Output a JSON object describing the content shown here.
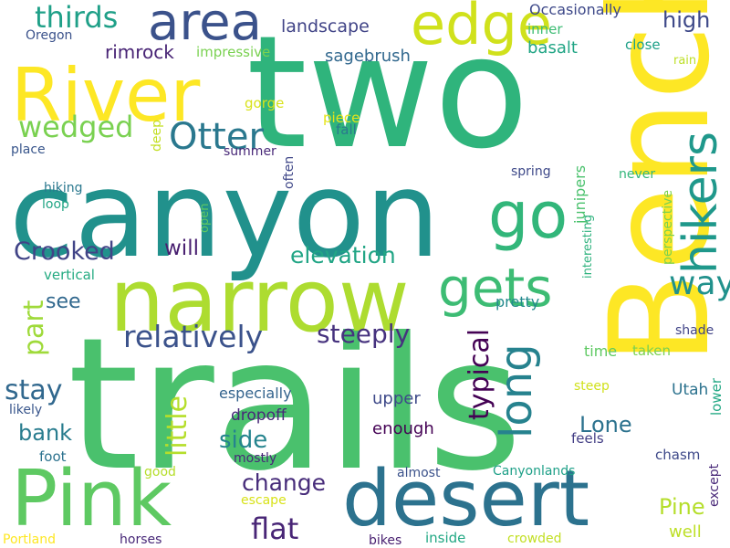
{
  "words": [
    {
      "text": "trails",
      "color": "#4ac16d"
    },
    {
      "text": "two",
      "color": "#2fb47c"
    },
    {
      "text": "canyon",
      "color": "#21918c"
    },
    {
      "text": "Bench",
      "color": "#fde725"
    },
    {
      "text": "narrow",
      "color": "#addc30"
    },
    {
      "text": "desert",
      "color": "#2c728e"
    },
    {
      "text": "Pink",
      "color": "#5ec962"
    },
    {
      "text": "River",
      "color": "#fde725"
    },
    {
      "text": "area",
      "color": "#3b528b"
    },
    {
      "text": "edge",
      "color": "#d0e11c"
    },
    {
      "text": "hikers",
      "color": "#1f988b"
    },
    {
      "text": "go",
      "color": "#32b67a"
    },
    {
      "text": "gets",
      "color": "#3dbc74"
    },
    {
      "text": "long",
      "color": "#26828e"
    },
    {
      "text": "Otter",
      "color": "#2a788e"
    },
    {
      "text": "wedged",
      "color": "#7ad151"
    },
    {
      "text": "relatively",
      "color": "#3b528b"
    },
    {
      "text": "way",
      "color": "#21918c"
    },
    {
      "text": "thirds",
      "color": "#1fa088"
    },
    {
      "text": "Crooked",
      "color": "#414487"
    },
    {
      "text": "elevation",
      "color": "#21a585"
    },
    {
      "text": "steeply",
      "color": "#46327e"
    },
    {
      "text": "typical",
      "color": "#440154"
    },
    {
      "text": "little",
      "color": "#b5de2b"
    },
    {
      "text": "stay",
      "color": "#31688e"
    },
    {
      "text": "part",
      "color": "#9fda3a"
    },
    {
      "text": "will",
      "color": "#481f70"
    },
    {
      "text": "change",
      "color": "#472c7a"
    },
    {
      "text": "flat",
      "color": "#482576"
    },
    {
      "text": "side",
      "color": "#25848e"
    },
    {
      "text": "Pine",
      "color": "#b5de2b"
    },
    {
      "text": "Lone",
      "color": "#2c728e"
    },
    {
      "text": "bank",
      "color": "#287c8e"
    },
    {
      "text": "see",
      "color": "#31688e"
    },
    {
      "text": "high",
      "color": "#3e4989"
    },
    {
      "text": "landscape",
      "color": "#414487"
    },
    {
      "text": "rimrock",
      "color": "#482475"
    },
    {
      "text": "sagebrush",
      "color": "#31688e"
    },
    {
      "text": "Occasionally",
      "color": "#3e4989"
    },
    {
      "text": "basalt",
      "color": "#21a585"
    },
    {
      "text": "upper",
      "color": "#3e4989"
    },
    {
      "text": "well",
      "color": "#bddf26"
    },
    {
      "text": "enough",
      "color": "#440154"
    },
    {
      "text": "dropoff",
      "color": "#482878"
    },
    {
      "text": "especially",
      "color": "#33638d"
    },
    {
      "text": "Utah",
      "color": "#2c728e"
    },
    {
      "text": "junipers",
      "color": "#4ac16d"
    },
    {
      "text": "pretty",
      "color": "#238a8d"
    },
    {
      "text": "vertical",
      "color": "#25ab82"
    },
    {
      "text": "impressive",
      "color": "#7ad151"
    },
    {
      "text": "Oregon",
      "color": "#3b528b"
    },
    {
      "text": "inner",
      "color": "#3dbc74"
    },
    {
      "text": "close",
      "color": "#1fa088"
    },
    {
      "text": "rain",
      "color": "#bddf26"
    },
    {
      "text": "gorge",
      "color": "#d8e219"
    },
    {
      "text": "piece",
      "color": "#e5e419"
    },
    {
      "text": "deep",
      "color": "#c2df23"
    },
    {
      "text": "fall",
      "color": "#2a788e"
    },
    {
      "text": "place",
      "color": "#39568c"
    },
    {
      "text": "summer",
      "color": "#482878"
    },
    {
      "text": "often",
      "color": "#3f4788"
    },
    {
      "text": "hiking",
      "color": "#2a788e"
    },
    {
      "text": "loop",
      "color": "#21a585"
    },
    {
      "text": "open",
      "color": "#5ec962"
    },
    {
      "text": "interesting",
      "color": "#2db27d"
    },
    {
      "text": "perspective",
      "color": "#7ad151"
    },
    {
      "text": "spring",
      "color": "#3e4989"
    },
    {
      "text": "never",
      "color": "#32b67a"
    },
    {
      "text": "shade",
      "color": "#414487"
    },
    {
      "text": "time",
      "color": "#5ec962"
    },
    {
      "text": "taken",
      "color": "#7ad151"
    },
    {
      "text": "steep",
      "color": "#d0e11c"
    },
    {
      "text": "lower",
      "color": "#22a884"
    },
    {
      "text": "likely",
      "color": "#39568c"
    },
    {
      "text": "foot",
      "color": "#2c728e"
    },
    {
      "text": "good",
      "color": "#b5de2b"
    },
    {
      "text": "mostly",
      "color": "#482878"
    },
    {
      "text": "almost",
      "color": "#3b528b"
    },
    {
      "text": "feels",
      "color": "#433e85"
    },
    {
      "text": "Canyonlands",
      "color": "#1fa088"
    },
    {
      "text": "chasm",
      "color": "#3e4989"
    },
    {
      "text": "except",
      "color": "#482878"
    },
    {
      "text": "escape",
      "color": "#d8e219"
    },
    {
      "text": "Portland",
      "color": "#fde725"
    },
    {
      "text": "horses",
      "color": "#482878"
    },
    {
      "text": "bikes",
      "color": "#481f70"
    },
    {
      "text": "inside",
      "color": "#22a884"
    },
    {
      "text": "crowded",
      "color": "#c2df23"
    }
  ]
}
